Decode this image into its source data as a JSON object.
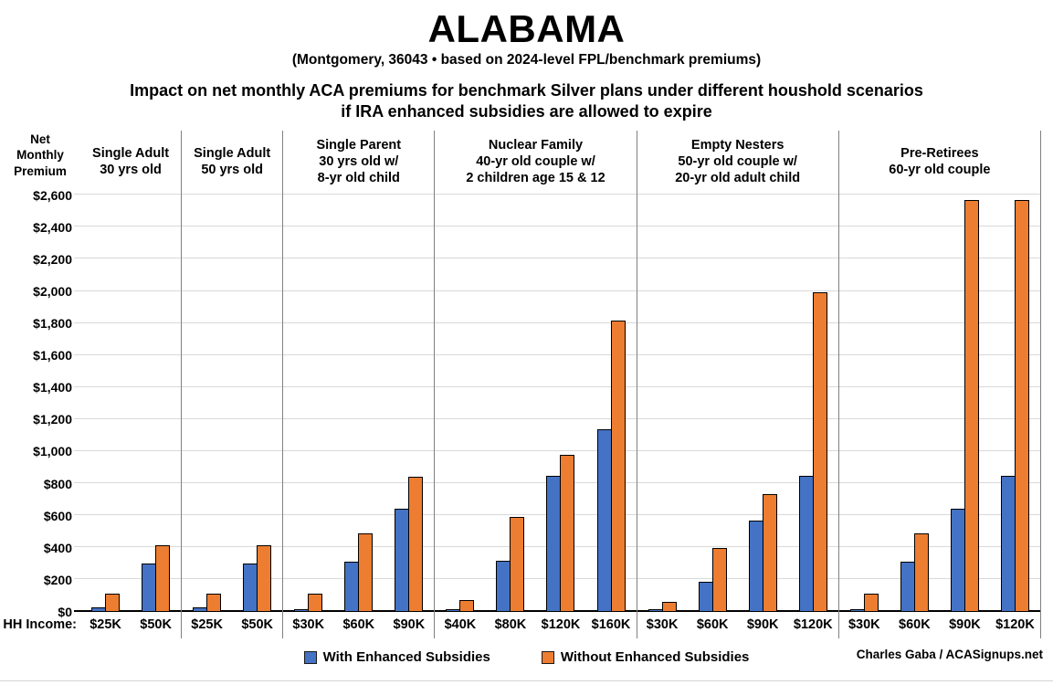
{
  "title": "ALABAMA",
  "subtitle": "(Montgomery, 36043 • based on 2024-level FPL/benchmark premiums)",
  "heading": {
    "line1": "Impact on net monthly ACA premiums for benchmark Silver plans under different houshold scenarios",
    "line2": "if IRA enhanced subsidies are allowed to expire"
  },
  "y_axis_title_lines": [
    "Net",
    "Monthly",
    "Premium"
  ],
  "hh_income_label": "HH Income:",
  "credit": "Charles Gaba / ACASignups.net",
  "colors": {
    "with_enhanced": "#4472C4",
    "without_enhanced": "#ED7D31",
    "gridline": "#D9D9D9",
    "group_divider": "#808080",
    "axis_line": "#000000",
    "background": "#FFFFFF",
    "text": "#000000"
  },
  "chart_data": {
    "type": "bar",
    "title": "ALABAMA",
    "xlabel": "HH Income:",
    "ylabel": "Net Monthly Premium",
    "ylim": [
      0,
      2600
    ],
    "ytick_interval": 200,
    "grid": true,
    "legend_position": "bottom",
    "y_tick_labels": [
      "$2,600",
      "$2,400",
      "$2,200",
      "$2,000",
      "$1,800",
      "$1,600",
      "$1,400",
      "$1,200",
      "$1,000",
      "$800",
      "$600",
      "$400",
      "$200",
      "$0"
    ],
    "series": [
      {
        "key": "with_enhanced",
        "name": "With Enhanced Subsidies",
        "color": "#4472C4"
      },
      {
        "key": "without_enhanced",
        "name": "Without Enhanced Subsidies",
        "color": "#ED7D31"
      }
    ],
    "groups": [
      {
        "header": [
          "Single Adult",
          "30 yrs old"
        ],
        "categories": [
          "$25K",
          "$50K"
        ],
        "with_enhanced": [
          20,
          295
        ],
        "without_enhanced": [
          105,
          410
        ]
      },
      {
        "header": [
          "Single Adult",
          "50 yrs old"
        ],
        "categories": [
          "$25K",
          "$50K"
        ],
        "with_enhanced": [
          20,
          295
        ],
        "without_enhanced": [
          105,
          410
        ]
      },
      {
        "header": [
          "Single Parent",
          "30 yrs old w/",
          "8-yr old child"
        ],
        "categories": [
          "$30K",
          "$60K",
          "$90K"
        ],
        "with_enhanced": [
          10,
          305,
          635
        ],
        "without_enhanced": [
          105,
          485,
          835
        ]
      },
      {
        "header": [
          "Nuclear Family",
          "40-yr old couple w/",
          "2 children age 15 & 12"
        ],
        "categories": [
          "$40K",
          "$80K",
          "$120K",
          "$160K"
        ],
        "with_enhanced": [
          0,
          310,
          845,
          1135
        ],
        "without_enhanced": [
          70,
          585,
          975,
          1810
        ]
      },
      {
        "header": [
          "Empty Nesters",
          "50-yr old couple w/",
          "20-yr old adult child"
        ],
        "categories": [
          "$30K",
          "$60K",
          "$90K",
          "$120K"
        ],
        "with_enhanced": [
          0,
          180,
          565,
          845
        ],
        "without_enhanced": [
          55,
          395,
          730,
          1990
        ]
      },
      {
        "header": [
          "Pre-Retirees",
          "60-yr old couple"
        ],
        "categories": [
          "$30K",
          "$60K",
          "$90K",
          "$120K"
        ],
        "with_enhanced": [
          10,
          305,
          635,
          845
        ],
        "without_enhanced": [
          110,
          485,
          2565,
          2565
        ]
      }
    ]
  }
}
